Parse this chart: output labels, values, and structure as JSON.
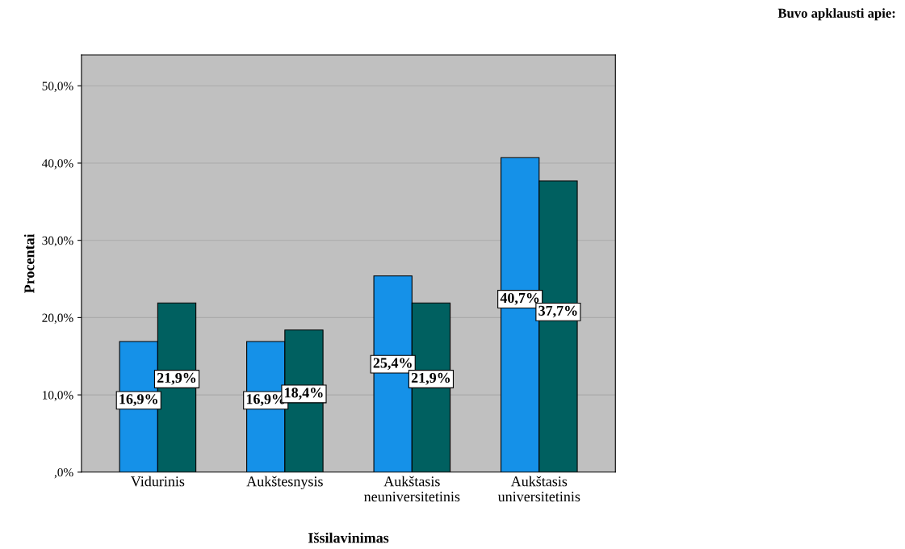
{
  "chart_data": {
    "type": "bar",
    "xlabel": "Išsilavinimas",
    "ylabel": "Procentai",
    "legend_title": "Buvo apklausti apie:",
    "categories": [
      "Vidurinis",
      "Aukštesnysis",
      "Aukštasis\nneuniversitetinis",
      "Aukštasis\nuniversitetinis"
    ],
    "series": [
      {
        "color": "#1591e8",
        "values": [
          16.9,
          16.9,
          25.4,
          40.7
        ],
        "value_labels": [
          "16,9%",
          "16,9%",
          "25,4%",
          "40,7%"
        ]
      },
      {
        "color": "#006060",
        "values": [
          21.9,
          18.4,
          21.9,
          37.7
        ],
        "value_labels": [
          "21,9%",
          "18,4%",
          "21,9%",
          "37,7%"
        ]
      }
    ],
    "ylim": [
      0,
      54
    ],
    "yticks": [
      {
        "value": 0,
        "label": ",0%"
      },
      {
        "value": 10,
        "label": "10,0%"
      },
      {
        "value": 20,
        "label": "20,0%"
      },
      {
        "value": 30,
        "label": "30,0%"
      },
      {
        "value": 40,
        "label": "40,0%"
      },
      {
        "value": 50,
        "label": "50,0%"
      }
    ],
    "grid": "y"
  }
}
